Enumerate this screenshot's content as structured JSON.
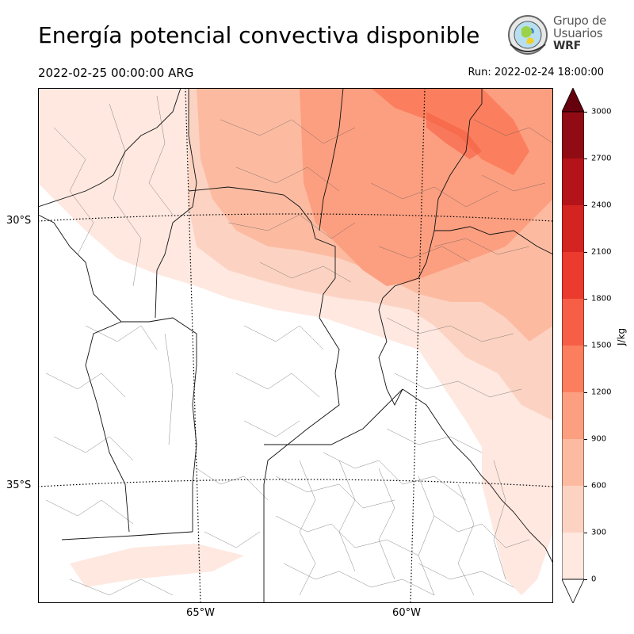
{
  "title": "Energía potencial convectiva disponible",
  "valid_time": "2022-02-25 00:00:00 ARG",
  "run_time": "Run: 2022-02-24 18:00:00",
  "logo": {
    "line1": "Grupo de",
    "line2": "Usuarios",
    "line3": "WRF"
  },
  "lat_labels": [
    "30°S",
    "35°S"
  ],
  "lon_labels": [
    "65°W",
    "60°W"
  ],
  "colorbar": {
    "unit": "J/kg",
    "ticks": [
      "0",
      "300",
      "600",
      "900",
      "1200",
      "1500",
      "1800",
      "2100",
      "2400",
      "2700",
      "3000"
    ],
    "colors": [
      "#fee8e0",
      "#fcd3c3",
      "#fcbba1",
      "#fc9f80",
      "#fb7f5e",
      "#f65f45",
      "#eb3b2e",
      "#d42421",
      "#b41319",
      "#910b14"
    ],
    "extend_top_color": "#67000d",
    "extend_bottom_color": "#ffffff"
  }
}
